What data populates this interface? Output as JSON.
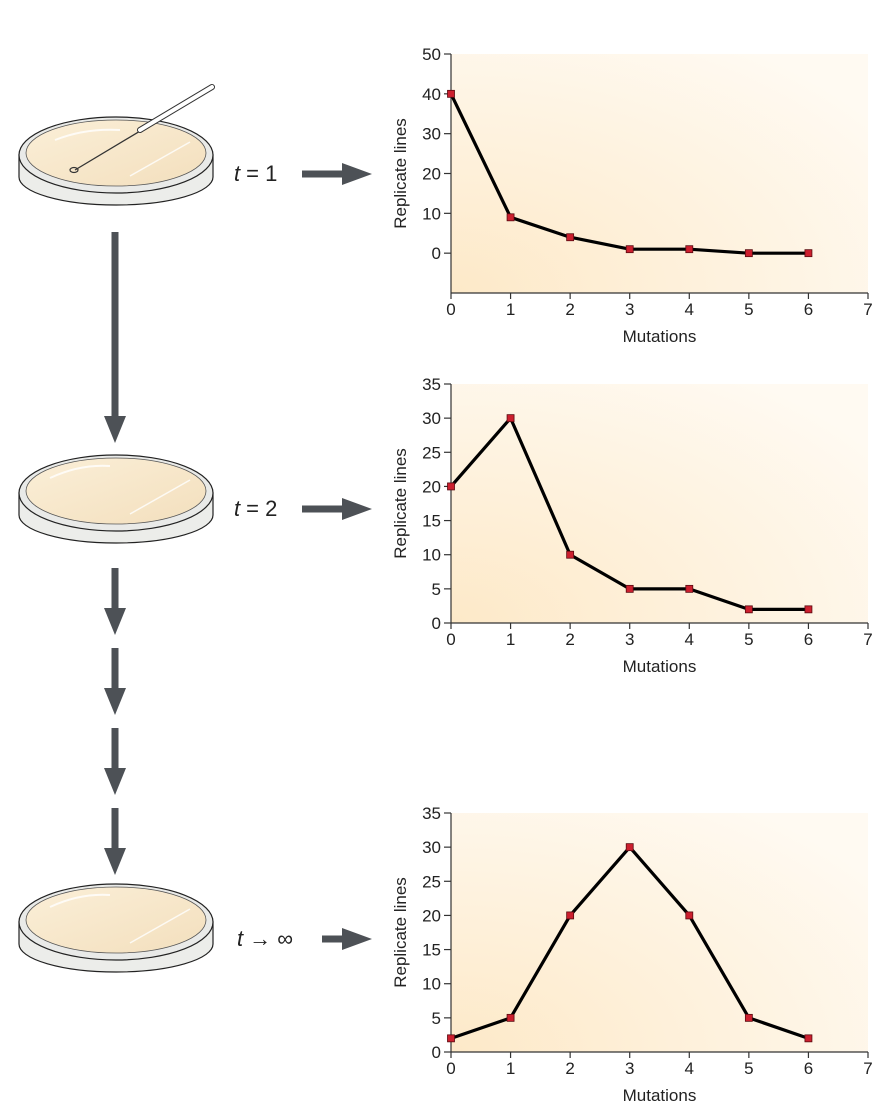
{
  "stages": [
    {
      "t_var": "t",
      "t_rel": "= 1"
    },
    {
      "t_var": "t",
      "t_rel": "= 2"
    },
    {
      "t_var": "t",
      "t_rel": "→ ∞"
    }
  ],
  "colors": {
    "plot_bg_warm": "#fde9c8",
    "plot_bg_light": "#fffaf2",
    "marker": "#cc1f2e",
    "line": "#000000",
    "arrow": "#4d5156",
    "dish_fill": "#f6e6c9",
    "dish_rim": "#e9eae8"
  },
  "chart_data": [
    {
      "type": "line",
      "xlabel": "Mutations",
      "ylabel": "Replicate lines",
      "xlim": [
        0,
        7
      ],
      "ylim": [
        -10,
        50
      ],
      "xticks": [
        "0",
        "1",
        "2",
        "3",
        "4",
        "5",
        "6",
        "7"
      ],
      "yticks": [
        "0",
        "10",
        "20",
        "30",
        "40",
        "50"
      ],
      "x": [
        0,
        1,
        2,
        3,
        4,
        5,
        6
      ],
      "y": [
        40,
        9,
        4,
        1,
        1,
        0,
        0
      ]
    },
    {
      "type": "line",
      "xlabel": "Mutations",
      "ylabel": "Replicate lines",
      "xlim": [
        0,
        7
      ],
      "ylim": [
        0,
        35
      ],
      "xticks": [
        "0",
        "1",
        "2",
        "3",
        "4",
        "5",
        "6",
        "7"
      ],
      "yticks": [
        "0",
        "5",
        "10",
        "15",
        "20",
        "25",
        "30",
        "35"
      ],
      "x": [
        0,
        1,
        2,
        3,
        4,
        5,
        6
      ],
      "y": [
        20,
        30,
        10,
        5,
        5,
        2,
        2
      ]
    },
    {
      "type": "line",
      "xlabel": "Mutations",
      "ylabel": "Replicate lines",
      "xlim": [
        0,
        7
      ],
      "ylim": [
        0,
        35
      ],
      "xticks": [
        "0",
        "1",
        "2",
        "3",
        "4",
        "5",
        "6",
        "7"
      ],
      "yticks": [
        "0",
        "5",
        "10",
        "15",
        "20",
        "25",
        "30",
        "35"
      ],
      "x": [
        0,
        1,
        2,
        3,
        4,
        5,
        6
      ],
      "y": [
        2,
        5,
        20,
        30,
        20,
        5,
        2
      ]
    }
  ]
}
